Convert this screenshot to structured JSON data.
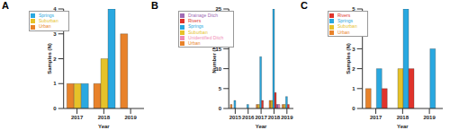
{
  "chart_data": [
    {
      "type": "bar",
      "title": "A",
      "x_label": "Year",
      "y_label": "Samples (N)",
      "categories": [
        "2017",
        "2018",
        "2019"
      ],
      "series": [
        {
          "name": "Urban",
          "color": "#e8822a",
          "values": [
            1,
            1,
            3
          ]
        },
        {
          "name": "Suburban",
          "color": "#e6c229",
          "values": [
            1,
            2,
            0
          ]
        },
        {
          "name": "Springs",
          "color": "#29a8e0",
          "values": [
            1,
            4,
            0
          ]
        }
      ],
      "ylim": [
        0,
        4
      ],
      "yticks": [
        0,
        1,
        2,
        3,
        4
      ],
      "legend": "top left"
    },
    {
      "type": "bar",
      "title": "B",
      "x_label": "Year",
      "y_label": "Number (N)",
      "categories": [
        "2015",
        "2016",
        "2017",
        "2018",
        "2019"
      ],
      "series": [
        {
          "name": "Urban",
          "color": "#e8822a",
          "values": [
            1,
            0,
            1,
            2,
            1
          ]
        },
        {
          "name": "Suburban",
          "color": "#e6c229",
          "values": [
            0,
            0,
            1,
            2,
            1
          ]
        },
        {
          "name": "Springs",
          "color": "#29a8e0",
          "values": [
            2,
            1,
            13,
            25,
            3
          ]
        },
        {
          "name": "Rivers",
          "color": "#e0332b",
          "values": [
            0,
            0,
            2,
            4,
            1
          ]
        },
        {
          "name": "Drainage Ditch",
          "color": "#a06ab4",
          "values": [
            0,
            0,
            0,
            1,
            0
          ]
        },
        {
          "name": "Unidentified Ditch",
          "color": "#f08cb4",
          "values": [
            0,
            0,
            0,
            1,
            0
          ]
        }
      ],
      "ylim": [
        0,
        25
      ],
      "yticks": [
        0,
        5,
        10,
        15,
        20,
        25
      ],
      "legend": "top left"
    },
    {
      "type": "bar",
      "title": "C",
      "x_label": "Year",
      "y_label": "Samples (N)",
      "categories": [
        "2017",
        "2018",
        "2019"
      ],
      "series": [
        {
          "name": "Urban",
          "color": "#e8822a",
          "values": [
            1,
            0,
            0
          ]
        },
        {
          "name": "Suburban",
          "color": "#e6c229",
          "values": [
            0,
            2,
            0
          ]
        },
        {
          "name": "Springs",
          "color": "#29a8e0",
          "values": [
            2,
            5,
            3
          ]
        },
        {
          "name": "Rivers",
          "color": "#e0332b",
          "values": [
            1,
            2,
            0
          ]
        }
      ],
      "ylim": [
        0,
        5
      ],
      "yticks": [
        0,
        1,
        2,
        3,
        4,
        5
      ],
      "legend": "top left"
    }
  ]
}
